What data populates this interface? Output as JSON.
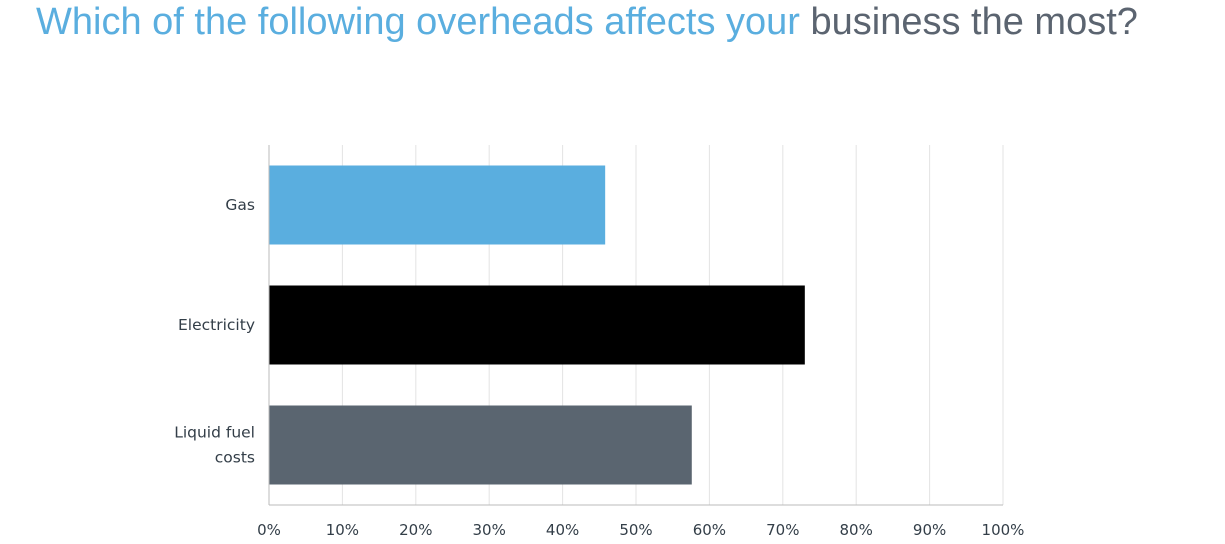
{
  "title_part1": "Which of the following overheads affects your",
  "title_part2": "business the most?",
  "colors": {
    "title_accent": "#5aaedf",
    "title_dark": "#5b6470",
    "gridline": "#e3e3e3",
    "axis": "#bbbbbb",
    "text": "#333e48"
  },
  "chart_data": {
    "type": "bar",
    "orientation": "horizontal",
    "categories": [
      [
        "Gas"
      ],
      [
        "Electricity"
      ],
      [
        "Liquid fuel",
        "costs"
      ]
    ],
    "values": [
      45.8,
      73.0,
      57.6
    ],
    "bar_colors": [
      "#5aaedf",
      "#000000",
      "#5a6570"
    ],
    "xlim": [
      0,
      100
    ],
    "xticks": [
      "0%",
      "10%",
      "20%",
      "30%",
      "40%",
      "50%",
      "60%",
      "70%",
      "80%",
      "90%",
      "100%"
    ],
    "grid": true
  }
}
